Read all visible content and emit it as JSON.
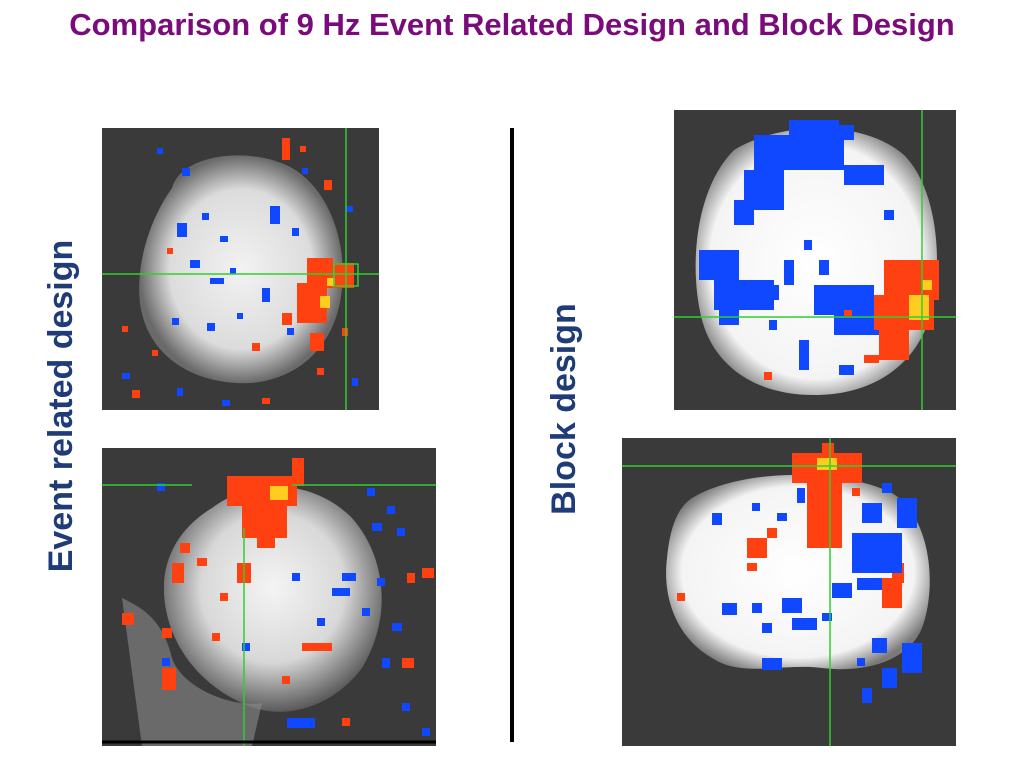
{
  "title": "Comparison of 9 Hz Event Related Design and Block Design",
  "labels": {
    "event_related": "Event related design",
    "block": "Block design"
  },
  "colors": {
    "title": "#7b0a7b",
    "label": "#1f3c78",
    "activation_positive": "#ff4010",
    "activation_peak": "#ffcc20",
    "activation_negative": "#1048ff",
    "crosshair": "#30d030",
    "panel_background": "#3a3a3a"
  }
}
